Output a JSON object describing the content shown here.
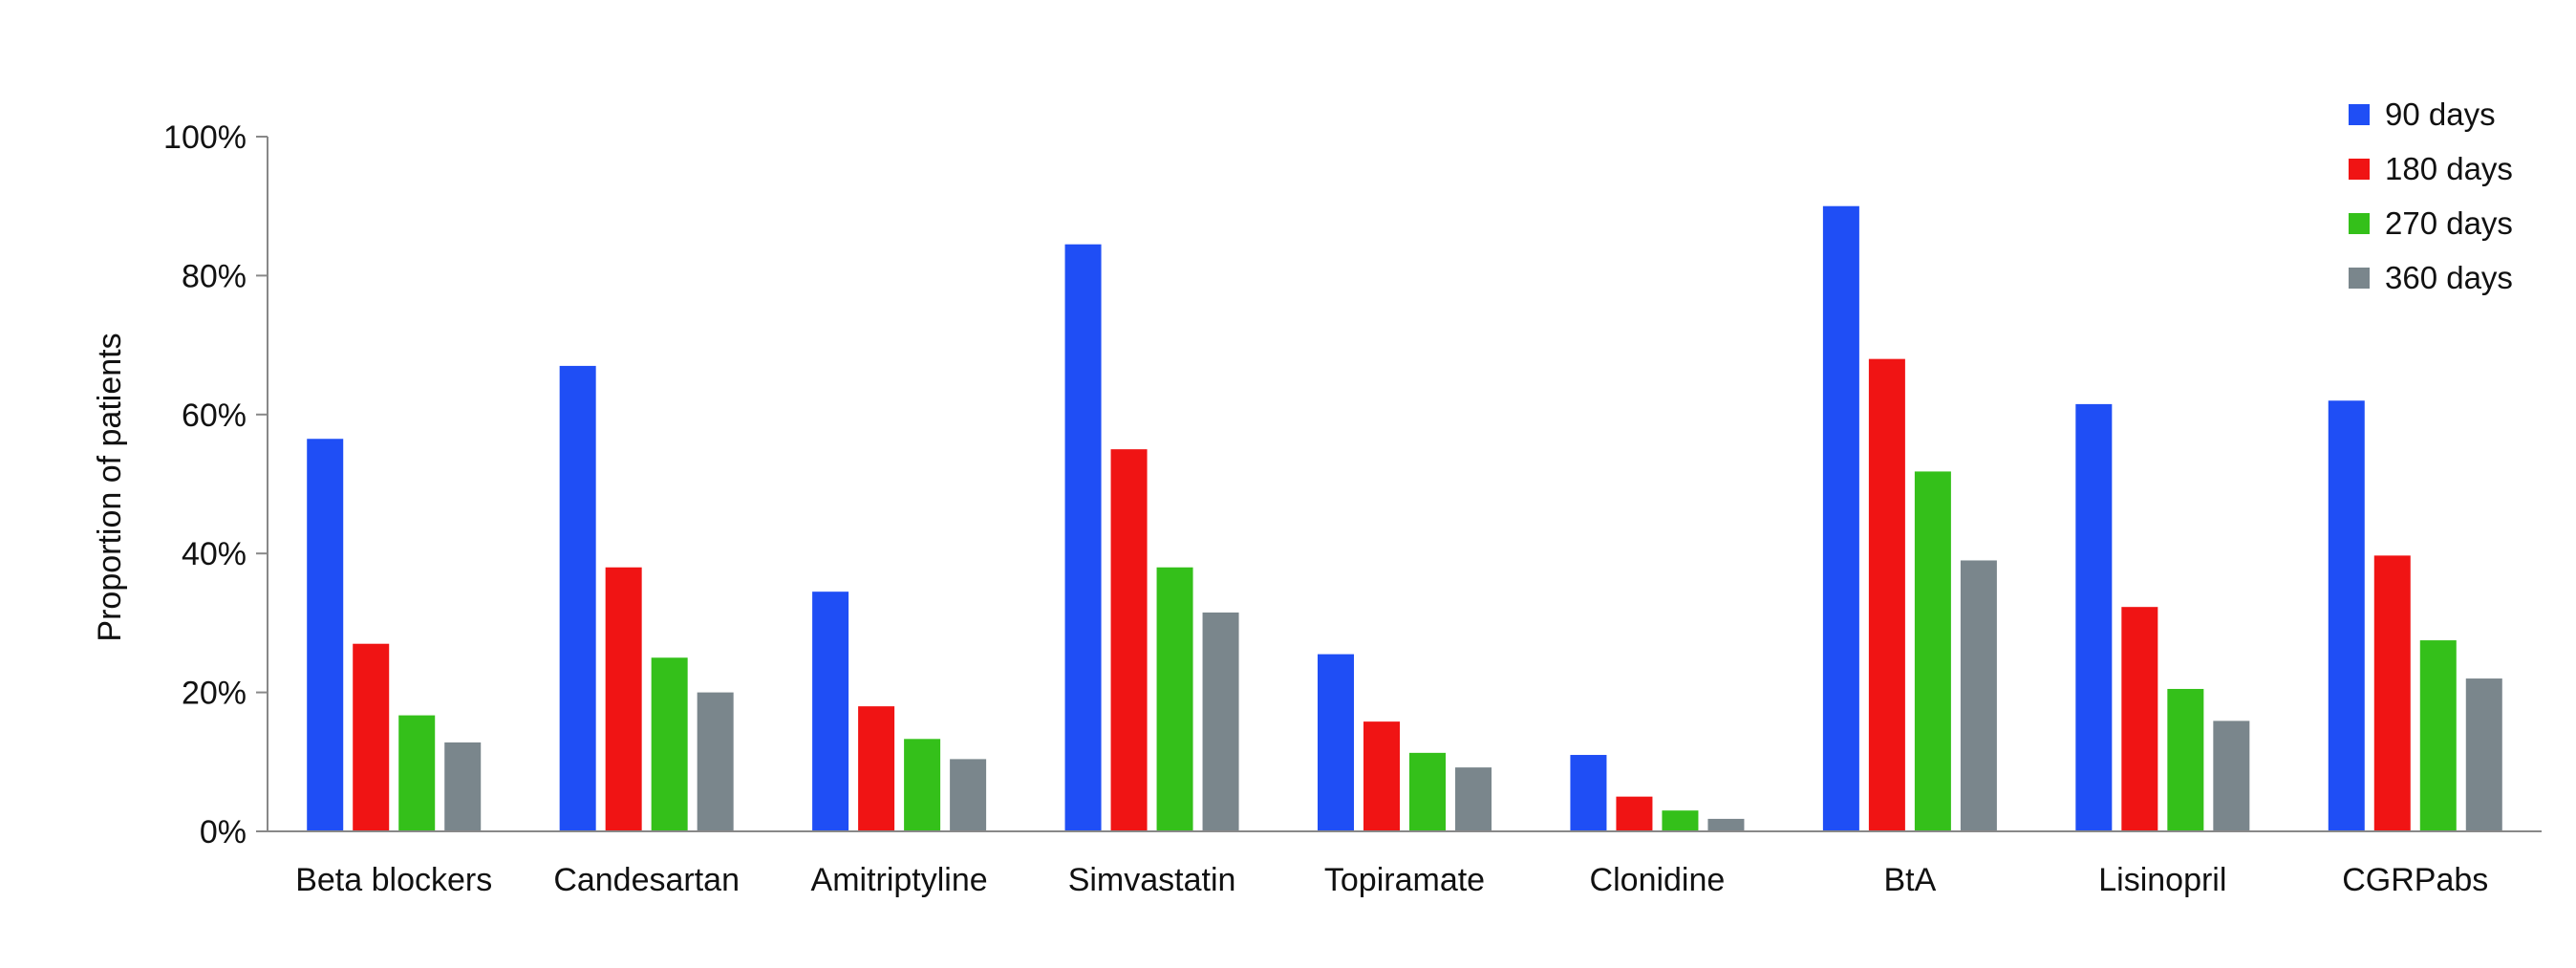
{
  "chart_data": {
    "type": "bar",
    "title": "",
    "xlabel": "",
    "ylabel": "Proportion of patients",
    "ylim": [
      0,
      100
    ],
    "yticks": [
      "0%",
      "20%",
      "40%",
      "60%",
      "80%",
      "100%"
    ],
    "ytick_values": [
      0,
      20,
      40,
      60,
      80,
      100
    ],
    "grid": false,
    "legend_position": "top-right",
    "categories": [
      "Beta blockers",
      "Candesartan",
      "Amitriptyline",
      "Simvastatin",
      "Topiramate",
      "Clonidine",
      "BtA",
      "Lisinopril",
      "CGRPabs"
    ],
    "series": [
      {
        "name": "90 days",
        "color": "#1f4ef5",
        "values": [
          56.5,
          67,
          34.5,
          84.5,
          25.5,
          11,
          90,
          61.5,
          62
        ]
      },
      {
        "name": "180 days",
        "color": "#f01414",
        "values": [
          27,
          38,
          18,
          55,
          15.8,
          5,
          68,
          32.3,
          39.7
        ]
      },
      {
        "name": "270 days",
        "color": "#34c01a",
        "values": [
          16.7,
          25,
          13.3,
          38,
          11.3,
          3,
          51.8,
          20.5,
          27.5
        ]
      },
      {
        "name": "360 days",
        "color": "#7a868c",
        "values": [
          12.8,
          20,
          10.4,
          31.5,
          9.2,
          1.8,
          39,
          15.9,
          22
        ]
      }
    ]
  }
}
